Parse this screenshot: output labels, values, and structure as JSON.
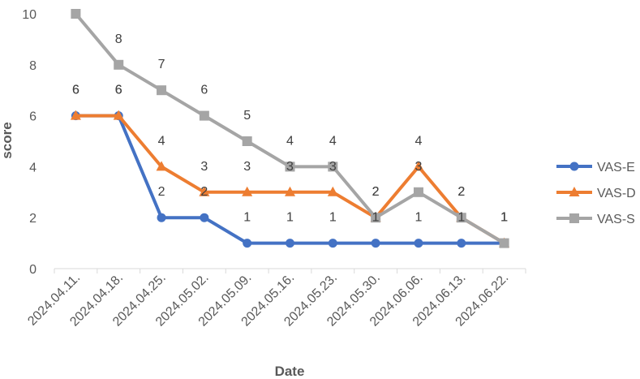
{
  "chart_data": {
    "type": "line",
    "xlabel": "Date",
    "ylabel": "score",
    "ylim": [
      0,
      10
    ],
    "yticks": [
      0,
      2,
      4,
      6,
      8,
      10
    ],
    "categories": [
      "2024.04.11.",
      "2024.04.18.",
      "2024.04.25.",
      "2024.05.02.",
      "2024.05.09.",
      "2024.05.16.",
      "2024.05.23.",
      "2024.05.30.",
      "2024.06.06.",
      "2024.06.13.",
      "2024.06.22."
    ],
    "grid": false,
    "legend_position": "right",
    "series": [
      {
        "name": "VAS-E",
        "values": [
          6,
          6,
          2,
          2,
          1,
          1,
          1,
          1,
          1,
          1,
          1
        ],
        "color": "#4472C4",
        "marker": "circle"
      },
      {
        "name": "VAS-D",
        "values": [
          6,
          6,
          4,
          3,
          3,
          3,
          3,
          2,
          4,
          2,
          1
        ],
        "color": "#ED7D31",
        "marker": "triangle"
      },
      {
        "name": "VAS-S",
        "values": [
          10,
          8,
          7,
          6,
          5,
          4,
          4,
          2,
          3,
          2,
          1
        ],
        "color": "#A5A5A5",
        "marker": "square"
      }
    ]
  }
}
